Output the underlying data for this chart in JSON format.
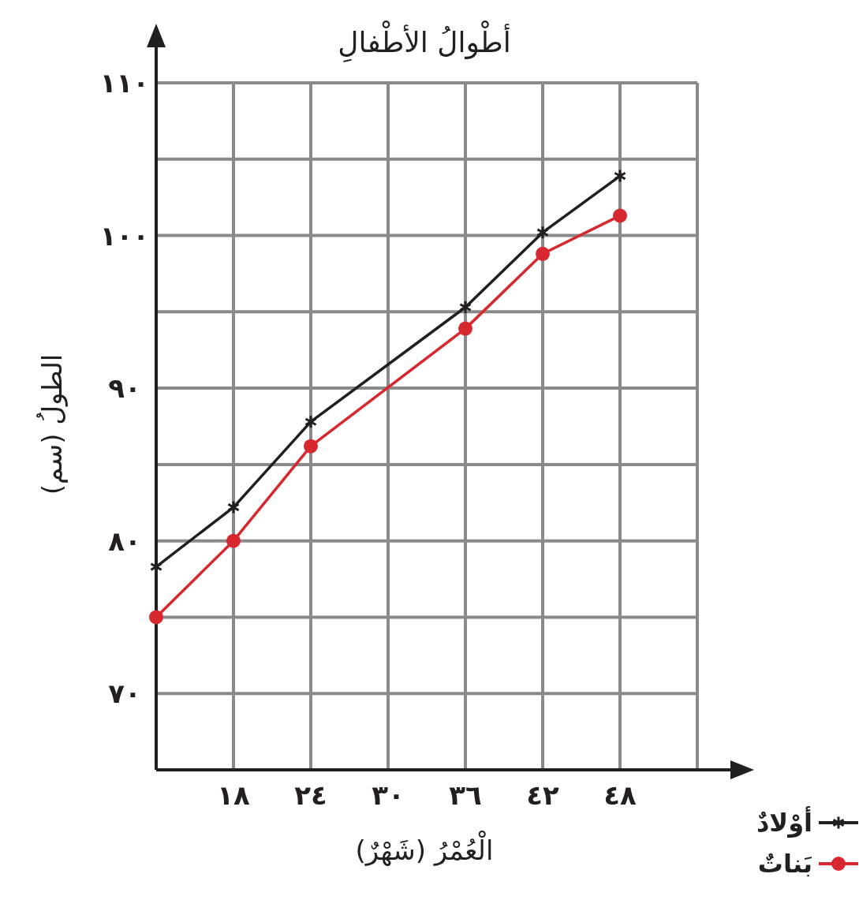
{
  "chart_data": {
    "type": "line",
    "title": "أطْوالُ الأطْفالِ",
    "xlabel": "الْعُمْرُ (شَهْرٌ)",
    "ylabel": "الطولُ (سم)",
    "x": [
      12,
      18,
      24,
      36,
      42,
      48
    ],
    "xlim": [
      12,
      54
    ],
    "ylim": [
      65,
      110
    ],
    "xticks": [
      {
        "value": 12,
        "label": null
      },
      {
        "value": 18,
        "label": "١٨"
      },
      {
        "value": 24,
        "label": "٢٤"
      },
      {
        "value": 30,
        "label": "٣٠"
      },
      {
        "value": 36,
        "label": "٣٦"
      },
      {
        "value": 42,
        "label": "٤٢"
      },
      {
        "value": 48,
        "label": "٤٨"
      },
      {
        "value": 54,
        "label": null
      }
    ],
    "yticks": [
      {
        "value": 65,
        "label": null
      },
      {
        "value": 70,
        "label": "٧٠"
      },
      {
        "value": 75,
        "label": null
      },
      {
        "value": 80,
        "label": "٨٠"
      },
      {
        "value": 85,
        "label": null
      },
      {
        "value": 90,
        "label": "٩٠"
      },
      {
        "value": 95,
        "label": null
      },
      {
        "value": 100,
        "label": "١٠٠"
      },
      {
        "value": 105,
        "label": null
      },
      {
        "value": 110,
        "label": "١١٠"
      }
    ],
    "grid": true,
    "legend": "bottom right",
    "line_style": "solid",
    "series": [
      {
        "name": "أوْلادٌ",
        "color": "#231f20",
        "marker": "cross",
        "values": [
          78.3,
          82.2,
          87.8,
          95.3,
          100.2,
          103.9
        ]
      },
      {
        "name": "بَناتٌ",
        "color": "#d7282f",
        "marker": "circle",
        "values": [
          75,
          80,
          86.2,
          93.9,
          98.8,
          101.3
        ]
      }
    ]
  }
}
